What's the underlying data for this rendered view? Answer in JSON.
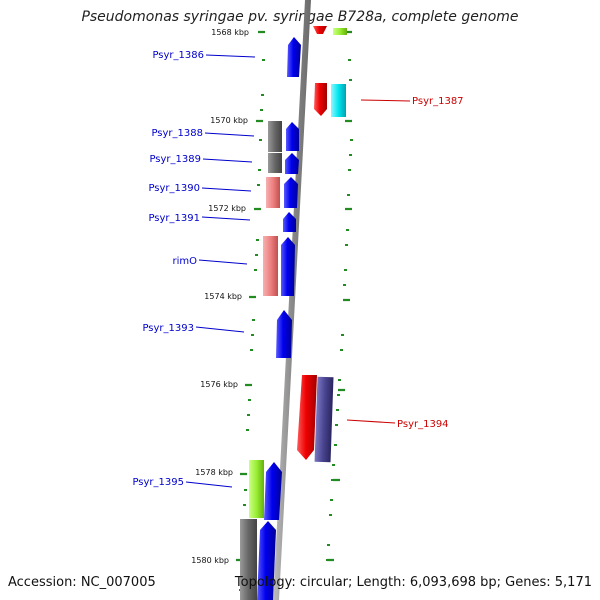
{
  "title": "Pseudomonas syringae pv. syringae B728a, complete genome",
  "accession": "Accession: NC_007005",
  "summary": "Topology: circular; Length: 6,093,698 bp; Genes: 5,171",
  "scale_ticks": [
    "1568 kbp",
    "1570 kbp",
    "1572 kbp",
    "1574 kbp",
    "1576 kbp",
    "1578 kbp",
    "1580 kbp"
  ],
  "genes": [
    {
      "name": "Psyr_1386",
      "strand": "forward"
    },
    {
      "name": "Psyr_1387",
      "strand": "reverse"
    },
    {
      "name": "Psyr_1388",
      "strand": "forward"
    },
    {
      "name": "Psyr_1389",
      "strand": "forward"
    },
    {
      "name": "Psyr_1390",
      "strand": "forward"
    },
    {
      "name": "Psyr_1391",
      "strand": "forward"
    },
    {
      "name": "rimO",
      "strand": "forward"
    },
    {
      "name": "Psyr_1393",
      "strand": "forward"
    },
    {
      "name": "Psyr_1394",
      "strand": "reverse"
    },
    {
      "name": "Psyr_1395",
      "strand": "forward"
    }
  ],
  "colors": {
    "forward_label": "#0000cc",
    "reverse_label": "#cc0000",
    "cds": "#0000ee",
    "red": "#ee0000",
    "pink": "#ee8080",
    "gray": "#666666",
    "cyan": "#00e5ee",
    "slate": "#4a4590",
    "lime": "#99ee33",
    "backbone": "#8a8a8a",
    "tick": "#228b22"
  }
}
